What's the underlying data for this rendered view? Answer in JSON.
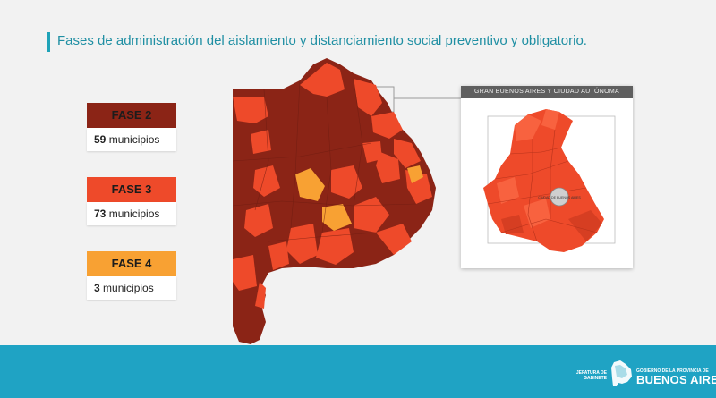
{
  "header": {
    "title": "Fases de administración del aislamiento y distanciamiento social preventivo y obligatorio."
  },
  "colors": {
    "fase2": "#8b2416",
    "fase3": "#ee4a2a",
    "fase4": "#f8a133",
    "accent": "#1fa3b8",
    "footer": "#1fa3c4"
  },
  "legend": [
    {
      "label": "FASE 2",
      "count": "59",
      "unit": "municipios"
    },
    {
      "label": "FASE 3",
      "count": "73",
      "unit": "municipios"
    },
    {
      "label": "FASE 4",
      "count": "3",
      "unit": "municipios"
    }
  ],
  "inset": {
    "title": "GRAN BUENOS AIRES Y CIUDAD AUTÓNOMA",
    "city_label": "CIUDAD DE BUENOS AIRES"
  },
  "footer": {
    "jefatura": "JEFATURA DE GABINETE",
    "gobierno": "GOBIERNO DE LA PROVINCIA DE",
    "province": "BUENOS AIRES",
    "logo_icon": "province-map-logo-icon"
  }
}
